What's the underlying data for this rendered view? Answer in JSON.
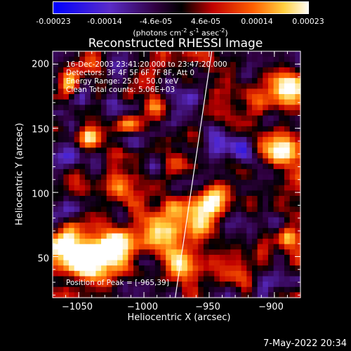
{
  "colorbar": {
    "tick_labels": [
      "-0.00023",
      "-0.00014",
      "-4.6e-05",
      "4.6e-05",
      "0.00014",
      "0.00023"
    ],
    "unit_label": {
      "photons_cm": "(photons cm",
      "exp_cm": "-2",
      "s": " s",
      "exp_s": "-1",
      "asec": " asec",
      "exp_asec": "-2",
      "close": ")"
    },
    "range": [
      -0.00023,
      0.00023
    ]
  },
  "chart_data": {
    "type": "heatmap",
    "title": "Reconstructed RHESSI Image",
    "xlabel": "Heliocentric X (arcsec)",
    "ylabel": "Heliocentric Y (arcsec)",
    "xlim": [
      -1070,
      -880
    ],
    "ylim": [
      18,
      210
    ],
    "x_ticks": [
      -1050,
      -1000,
      -950,
      -900
    ],
    "y_ticks": [
      50,
      100,
      150,
      200
    ],
    "x_tick_labels": [
      "−1050",
      "−1000",
      "−950",
      "−900"
    ],
    "y_tick_labels": [
      "50",
      "100",
      "150",
      "200"
    ],
    "limb_line": {
      "x": [
        -976,
        -948
      ],
      "y": [
        18,
        210
      ]
    },
    "annotations": [
      "16-Dec-2003 23:41:20.000 to 23:47:20.000",
      "Detectors: 3F 4F 5F 6F 7F 8F, Att 0",
      "Energy Range: 25.0 - 50.0 keV",
      "Clean    Total counts: 5.06E+03"
    ],
    "peak_label": "Position of Peak = [-965,39]",
    "peak": [
      -965,
      39
    ],
    "colormap": [
      "#0000ff",
      "#5a2cc8",
      "#300040",
      "#000000",
      "#c00000",
      "#ff6000",
      "#ffd040",
      "#ffffff"
    ]
  },
  "footer": {
    "date": "7-May-2022 20:34"
  }
}
